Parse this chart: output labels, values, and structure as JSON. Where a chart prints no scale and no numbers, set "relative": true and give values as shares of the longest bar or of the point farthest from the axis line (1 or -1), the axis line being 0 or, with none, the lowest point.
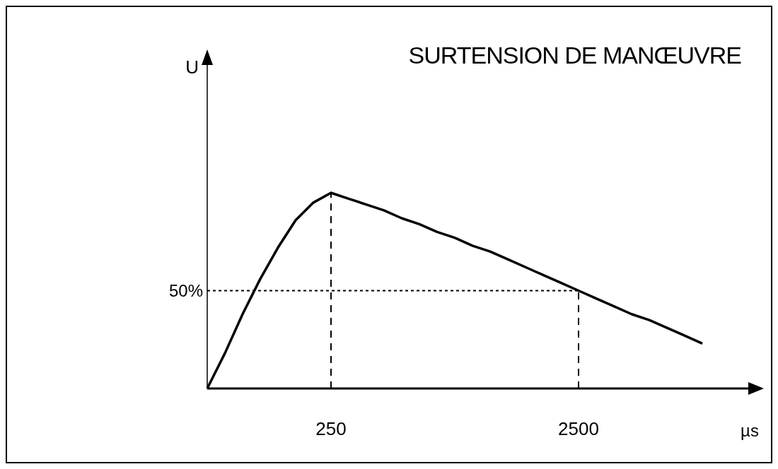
{
  "chart_data": {
    "type": "line",
    "title": "SURTENSION DE MANŒUVRE",
    "xlabel": "µs",
    "annotations": [
      "U"
    ],
    "relative": true,
    "color": "#000000",
    "line_style": "solid",
    "marker": "none",
    "categories": [
      null,
      null,
      null,
      null,
      null,
      null,
      null,
      "250",
      null,
      null,
      null,
      null,
      null,
      null,
      null,
      null,
      null,
      null,
      null,
      null,
      null,
      "2500",
      null,
      null,
      null,
      null,
      null,
      null,
      null
    ],
    "values": [
      0,
      0.18,
      0.38,
      0.56,
      0.72,
      0.86,
      0.95,
      1,
      0.97,
      0.94,
      0.91,
      0.87,
      0.84,
      0.8,
      0.77,
      0.73,
      0.7,
      0.66,
      0.62,
      0.58,
      0.54,
      0.5,
      0.46,
      0.42,
      0.38,
      0.35,
      0.31,
      0.27,
      0.23
    ],
    "ref_lines": [
      {
        "axis": "y",
        "value": 0.5,
        "label": "50%",
        "line_style": "dotted"
      },
      {
        "axis": "x",
        "value": "250",
        "label": null,
        "line_style": "dashed"
      },
      {
        "axis": "x",
        "value": "2500",
        "label": null,
        "line_style": "dashed"
      }
    ]
  }
}
